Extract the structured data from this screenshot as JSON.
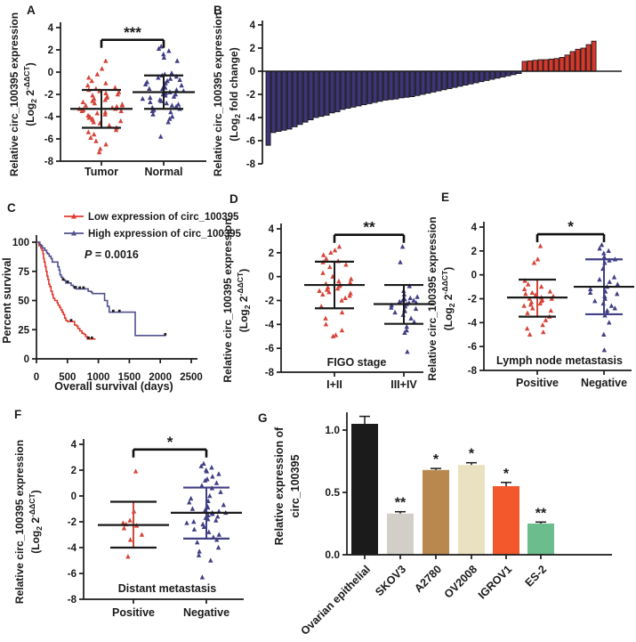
{
  "figure_background": "#ffffff",
  "shared_colors": {
    "red": "#d6453a",
    "navy": "#413f85",
    "axis": "#1a1a1a"
  },
  "chart_data": [
    {
      "panel": "A",
      "type": "scatter",
      "subtype": "column-dot-plot",
      "ylabel": {
        "line1": "Relative circ_100395 expression",
        "line2": [
          {
            "t": "(Log"
          },
          {
            "t": "2",
            "style": "sub"
          },
          {
            "t": " 2"
          },
          {
            "t": "-ΔΔCT",
            "style": "sup"
          },
          {
            "t": ")"
          }
        ]
      },
      "ylim": [
        -8,
        4
      ],
      "yticks": [
        4,
        2,
        0,
        -2,
        -4,
        -6,
        -8
      ],
      "x_labels": [
        "Tumor",
        "Normal"
      ],
      "sig": {
        "label": "***",
        "y": 2.9
      },
      "groups": [
        {
          "label": "Tumor",
          "color": "#d6453a",
          "points": [
            1.0,
            0.3,
            -0.2,
            -0.5,
            -0.8,
            -1.0,
            -1.2,
            -1.4,
            -1.5,
            -1.6,
            -1.7,
            -1.8,
            -1.9,
            -2.0,
            -2.1,
            -2.2,
            -2.3,
            -2.4,
            -2.5,
            -2.6,
            -2.7,
            -2.8,
            -2.9,
            -3.0,
            -3.0,
            -3.1,
            -3.2,
            -3.3,
            -3.3,
            -3.4,
            -3.5,
            -3.5,
            -3.6,
            -3.7,
            -3.8,
            -3.9,
            -4.0,
            -4.1,
            -4.2,
            -4.3,
            -4.4,
            -4.5,
            -4.6,
            -4.8,
            -5.0,
            -5.2,
            -5.4,
            -5.6,
            -5.9,
            -6.2,
            -6.5,
            -6.9,
            -7.2
          ],
          "mean": -3.3,
          "err_high": -1.6,
          "err_low": -5.0,
          "lines": {
            "mean": "#1a1a1a",
            "whisker": "#1a1a1a",
            "vertical": "#1a1a1a"
          }
        },
        {
          "label": "Normal",
          "color": "#413f85",
          "points": [
            2.3,
            2.1,
            1.9,
            1.6,
            1.3,
            1.0,
            -0.1,
            -0.2,
            -0.3,
            -0.4,
            -0.5,
            -0.6,
            -0.7,
            -0.8,
            -0.9,
            -1.0,
            -1.1,
            -1.2,
            -1.3,
            -1.4,
            -1.5,
            -1.5,
            -1.6,
            -1.7,
            -1.8,
            -1.8,
            -1.9,
            -2.0,
            -2.0,
            -2.1,
            -2.2,
            -2.3,
            -2.4,
            -2.5,
            -2.6,
            -2.7,
            -2.8,
            -2.9,
            -3.0,
            -3.1,
            -3.2,
            -3.3,
            -3.4,
            -3.5,
            -3.6,
            -3.8,
            -4.0,
            -4.2,
            -4.5,
            -5.8
          ],
          "mean": -1.8,
          "err_high": -0.3,
          "err_low": -3.3,
          "lines": {
            "mean": "#1a1a1a",
            "whisker": "#1a1a1a",
            "vertical": "#1a1a1a"
          }
        }
      ]
    },
    {
      "panel": "B",
      "type": "bar",
      "subtype": "waterfall",
      "ylabel": {
        "line1": "Relative circ_100395 expression",
        "line2": [
          {
            "t": "(Log"
          },
          {
            "t": "2",
            "style": "sub"
          },
          {
            "t": " fold change)"
          }
        ]
      },
      "ylim": [
        -8,
        4
      ],
      "yticks": [
        4,
        2,
        0,
        -2,
        -4,
        -6,
        -8
      ],
      "neg_color": "#3d3575",
      "pos_color": "#d6392c",
      "bar_stroke": "#111111",
      "values": [
        -6.4,
        -5.3,
        -5.2,
        -5.1,
        -5.0,
        -4.8,
        -4.6,
        -4.4,
        -4.2,
        -4.0,
        -3.9,
        -3.8,
        -3.6,
        -3.5,
        -3.3,
        -3.2,
        -3.1,
        -3.0,
        -2.9,
        -2.8,
        -2.7,
        -2.6,
        -2.5,
        -2.45,
        -2.4,
        -2.3,
        -2.25,
        -2.2,
        -2.1,
        -2.0,
        -1.9,
        -1.8,
        -1.7,
        -1.6,
        -1.5,
        -1.4,
        -1.3,
        -1.2,
        -1.1,
        -1.0,
        -0.9,
        -0.8,
        -0.7,
        -0.6,
        -0.5,
        -0.4,
        -0.3,
        -0.2,
        0.85,
        0.9,
        0.95,
        1.0,
        1.0,
        1.05,
        1.1,
        1.2,
        1.4,
        1.7,
        1.9,
        2.0,
        2.3,
        2.6
      ]
    },
    {
      "panel": "C",
      "type": "line",
      "subtype": "kaplan-meier",
      "xlabel": "Overall survival (days)",
      "ylabel": "Percent survival",
      "xlim": [
        0,
        2500
      ],
      "xticks": [
        0,
        500,
        1000,
        1500,
        2000,
        2500
      ],
      "yticks": [
        0,
        25,
        50,
        75,
        100
      ],
      "p_label": "P",
      "p_value": " = 0.0016",
      "legend": [
        {
          "label": "Low expression of circ_100395",
          "color": "#e03a2e"
        },
        {
          "label": "High expression of circ_100395",
          "color": "#50508d"
        }
      ],
      "series": [
        {
          "name": "Low expression of circ_100395",
          "color": "#e03a2e",
          "steps": [
            [
              0,
              100
            ],
            [
              40,
              97
            ],
            [
              70,
              95
            ],
            [
              90,
              93
            ],
            [
              105,
              90
            ],
            [
              115,
              86
            ],
            [
              125,
              83
            ],
            [
              140,
              79
            ],
            [
              155,
              75
            ],
            [
              170,
              71
            ],
            [
              185,
              68
            ],
            [
              200,
              64
            ],
            [
              215,
              62
            ],
            [
              235,
              58
            ],
            [
              255,
              55
            ],
            [
              270,
              52
            ],
            [
              295,
              50
            ],
            [
              335,
              48
            ],
            [
              350,
              46
            ],
            [
              375,
              44
            ],
            [
              395,
              42
            ],
            [
              415,
              40
            ],
            [
              435,
              38
            ],
            [
              455,
              35
            ],
            [
              475,
              33
            ],
            [
              500,
              32
            ],
            [
              615,
              29
            ],
            [
              650,
              28
            ],
            [
              670,
              26
            ],
            [
              700,
              24
            ],
            [
              735,
              22
            ],
            [
              765,
              21
            ],
            [
              795,
              19
            ],
            [
              820,
              17
            ],
            [
              955,
              17
            ]
          ],
          "censors": [
            [
              560,
              32
            ],
            [
              840,
              17
            ],
            [
              895,
              17
            ]
          ]
        },
        {
          "name": "High expression of circ_100395",
          "color": "#50508d",
          "steps": [
            [
              0,
              100
            ],
            [
              55,
              98
            ],
            [
              75,
              97
            ],
            [
              95,
              95
            ],
            [
              135,
              93
            ],
            [
              165,
              91
            ],
            [
              180,
              90
            ],
            [
              205,
              88
            ],
            [
              235,
              86
            ],
            [
              255,
              83
            ],
            [
              345,
              79
            ],
            [
              365,
              76
            ],
            [
              380,
              72
            ],
            [
              400,
              70
            ],
            [
              425,
              68
            ],
            [
              455,
              67
            ],
            [
              475,
              65
            ],
            [
              560,
              63
            ],
            [
              595,
              62
            ],
            [
              645,
              60
            ],
            [
              835,
              58
            ],
            [
              885,
              57
            ],
            [
              905,
              56
            ],
            [
              1100,
              50
            ],
            [
              1145,
              45
            ],
            [
              1175,
              40
            ],
            [
              1595,
              20
            ],
            [
              2090,
              20
            ]
          ],
          "censors": [
            [
              430,
              67
            ],
            [
              505,
              65
            ],
            [
              620,
              60
            ],
            [
              700,
              60
            ],
            [
              760,
              60
            ],
            [
              1240,
              40
            ],
            [
              1340,
              40
            ],
            [
              2080,
              20
            ]
          ]
        }
      ]
    },
    {
      "panel": "D",
      "type": "scatter",
      "subtype": "column-dot-plot",
      "ylabel": {
        "line1": "Relative circ_100395 expression",
        "line2": [
          {
            "t": "(Log"
          },
          {
            "t": "2",
            "style": "sub"
          },
          {
            "t": " 2"
          },
          {
            "t": "-ΔΔCT",
            "style": "sup"
          },
          {
            "t": ")"
          }
        ]
      },
      "ylim": [
        -8,
        4
      ],
      "yticks": [
        4,
        2,
        0,
        -2,
        -4,
        -6,
        -8
      ],
      "axis_title": "FIGO stage",
      "x_labels": [
        "I+II",
        "III+IV"
      ],
      "sig": {
        "label": "**",
        "y": 3.5
      },
      "groups": [
        {
          "label": "I+II",
          "color": "#d6453a",
          "points": [
            2.5,
            2.2,
            2.0,
            1.8,
            1.5,
            1.3,
            1.2,
            1.0,
            0.8,
            0.3,
            0.0,
            -0.2,
            -0.4,
            -0.5,
            -0.6,
            -0.7,
            -0.8,
            -0.9,
            -1.0,
            -1.1,
            -1.2,
            -1.3,
            -1.4,
            -1.5,
            -1.6,
            -1.8,
            -2.0,
            -2.5,
            -3.0,
            -3.5,
            -4.0,
            -4.5,
            -4.9,
            -5.0
          ],
          "mean": -0.7,
          "err_high": 1.25,
          "err_low": -2.65,
          "lines": {
            "mean": "#1a1a1a",
            "whisker": "#1a1a1a",
            "vertical": "#1a1a1a"
          }
        },
        {
          "label": "III+IV",
          "color": "#413f85",
          "points": [
            2.5,
            1.2,
            -0.8,
            -1.2,
            -1.5,
            -1.7,
            -1.8,
            -1.9,
            -2.0,
            -2.0,
            -2.1,
            -2.2,
            -2.2,
            -2.3,
            -2.4,
            -2.5,
            -2.6,
            -2.7,
            -2.8,
            -2.9,
            -3.0,
            -3.2,
            -3.5,
            -3.8,
            -4.2,
            -4.5,
            -4.7,
            -6.3
          ],
          "mean": -2.3,
          "err_high": -0.7,
          "err_low": -3.95,
          "lines": {
            "mean": "#1a1a1a",
            "whisker": "#1a1a1a",
            "vertical": "#1a1a1a"
          }
        }
      ]
    },
    {
      "panel": "E",
      "type": "scatter",
      "subtype": "column-dot-plot",
      "ylabel": {
        "line1": "Relative circ_100395 expression",
        "line2": [
          {
            "t": "(Log"
          },
          {
            "t": "2",
            "style": "sub"
          },
          {
            "t": " 2"
          },
          {
            "t": "-ΔΔCT",
            "style": "sup"
          },
          {
            "t": ")"
          }
        ]
      },
      "ylim": [
        -8,
        4
      ],
      "yticks": [
        4,
        2,
        0,
        -2,
        -4,
        -6,
        -8
      ],
      "axis_title": "Lymph node metastasis",
      "x_labels": [
        "Positive",
        "Negative"
      ],
      "sig": {
        "label": "*",
        "y": 3.4
      },
      "groups": [
        {
          "label": "Positive",
          "color": "#d6453a",
          "points": [
            2.4,
            1.3,
            1.0,
            -0.5,
            -0.8,
            -1.0,
            -1.2,
            -1.4,
            -1.5,
            -1.6,
            -1.7,
            -1.8,
            -1.9,
            -2.0,
            -2.0,
            -2.1,
            -2.2,
            -2.3,
            -2.4,
            -2.5,
            -2.6,
            -2.8,
            -3.0,
            -3.2,
            -3.5,
            -3.8,
            -4.2,
            -4.5,
            -4.8,
            -5.0
          ],
          "mean": -1.9,
          "err_high": -0.4,
          "err_low": -3.5,
          "lines": {
            "mean": "#1a1a1a",
            "whisker": "#1a1a1a",
            "vertical": "#d6453a"
          }
        },
        {
          "label": "Negative",
          "color": "#413f85",
          "points": [
            2.5,
            2.2,
            2.0,
            1.8,
            1.5,
            1.3,
            1.2,
            1.0,
            0.5,
            -0.2,
            -0.4,
            -0.6,
            -0.8,
            -1.0,
            -1.2,
            -1.4,
            -1.5,
            -1.6,
            -1.8,
            -2.0,
            -2.2,
            -2.4,
            -2.6,
            -2.8,
            -3.0,
            -3.2,
            -3.4,
            -4.0,
            -5.0,
            -6.3
          ],
          "mean": -1.0,
          "err_high": 1.3,
          "err_low": -3.3,
          "lines": {
            "mean": "#1a1a1a",
            "whisker": "#413f85",
            "vertical": "#413f85"
          }
        }
      ]
    },
    {
      "panel": "F",
      "type": "scatter",
      "subtype": "column-dot-plot",
      "ylabel": {
        "line1": "Relative circ_100395 expression",
        "line2": [
          {
            "t": "(Log"
          },
          {
            "t": "2",
            "style": "sub"
          },
          {
            "t": " 2"
          },
          {
            "t": "-ΔΔCT",
            "style": "sup"
          },
          {
            "t": ")"
          }
        ]
      },
      "ylim": [
        -8,
        4
      ],
      "yticks": [
        4,
        2,
        0,
        -2,
        -4,
        -6,
        -8
      ],
      "axis_title": "Distant metastasis",
      "x_labels": [
        "Positive",
        "Negative"
      ],
      "sig": {
        "label": "*",
        "y": 3.6
      },
      "groups": [
        {
          "label": "Positive",
          "color": "#d6453a",
          "points": [
            1.9,
            -1.2,
            -1.9,
            -2.1,
            -2.2,
            -2.3,
            -2.5,
            -3.0,
            -3.4,
            -4.7
          ],
          "mean": -2.25,
          "err_high": -0.45,
          "err_low": -4.0,
          "lines": {
            "mean": "#1a1a1a",
            "whisker": "#1a1a1a",
            "vertical": "#d6453a"
          }
        },
        {
          "label": "Negative",
          "color": "#413f85",
          "points": [
            2.5,
            2.3,
            2.2,
            2.0,
            1.9,
            1.7,
            1.5,
            1.3,
            1.2,
            1.0,
            0.8,
            0.6,
            0.3,
            0.0,
            -0.2,
            -0.4,
            -0.5,
            -0.7,
            -0.8,
            -0.9,
            -1.0,
            -1.1,
            -1.2,
            -1.3,
            -1.3,
            -1.4,
            -1.5,
            -1.6,
            -1.7,
            -1.8,
            -1.9,
            -2.0,
            -2.1,
            -2.2,
            -2.4,
            -2.6,
            -2.8,
            -3.0,
            -3.2,
            -3.4,
            -3.6,
            -4.0,
            -4.3,
            -4.6,
            -5.0,
            -6.3
          ],
          "mean": -1.3,
          "err_high": 0.65,
          "err_low": -3.3,
          "lines": {
            "mean": "#1a1a1a",
            "whisker": "#413f85",
            "vertical": "#413f85"
          }
        }
      ]
    },
    {
      "panel": "G",
      "type": "bar",
      "subtype": "grouped-cell-lines",
      "ylabel_lines": [
        "Relative expression of",
        "circ_100395"
      ],
      "ylim": [
        0,
        1.25
      ],
      "yticks": [
        0.0,
        0.5,
        1.0
      ],
      "categories": [
        "Ovarian epithelial",
        "SKOV3",
        "A2780",
        "OV2008",
        "IGROV1",
        "ES-2"
      ],
      "values": [
        1.05,
        0.33,
        0.68,
        0.72,
        0.55,
        0.25
      ],
      "errors": [
        0.06,
        0.015,
        0.012,
        0.018,
        0.03,
        0.012
      ],
      "stars": [
        "",
        "**",
        "*",
        "*",
        "*",
        "**"
      ],
      "bar_colors": [
        "#1b1b1b",
        "#d2cfc9",
        "#b9884f",
        "#eae1c0",
        "#f2582b",
        "#6cbd8e"
      ]
    }
  ]
}
